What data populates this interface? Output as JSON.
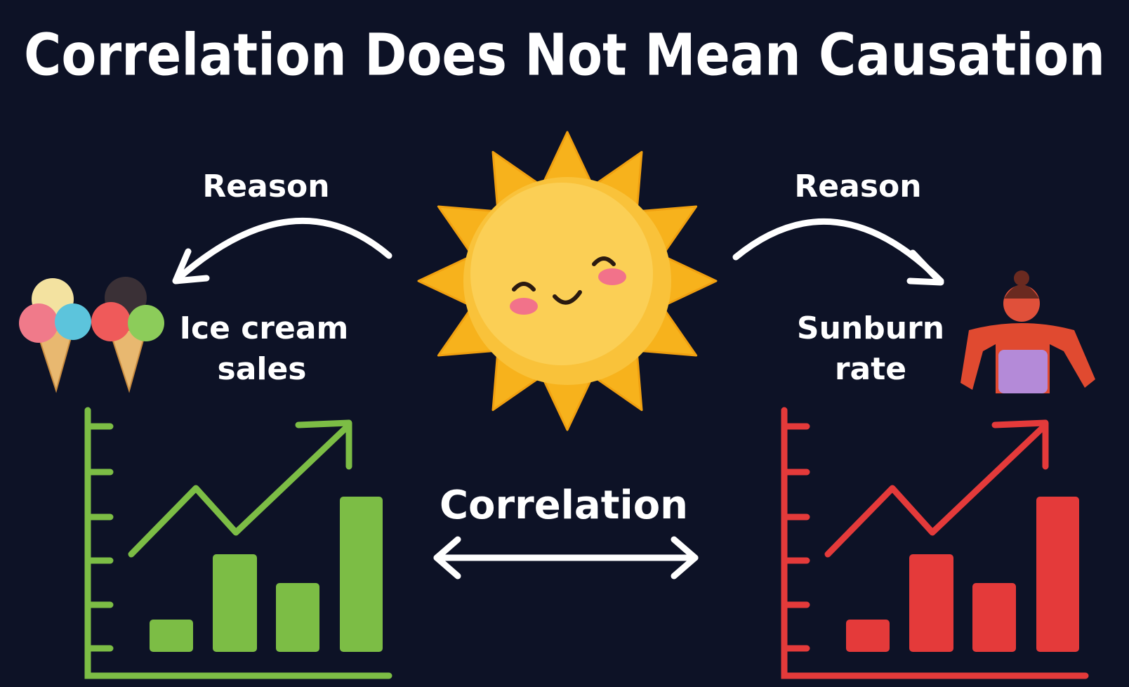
{
  "title": "Correlation Does Not Mean Causation",
  "left": {
    "arrow_label": "Reason",
    "label_lines": [
      "Ice cream",
      "sales"
    ]
  },
  "right": {
    "arrow_label": "Reason",
    "label_lines": [
      "Sunburn",
      "rate"
    ]
  },
  "center": {
    "label": "Correlation"
  }
}
